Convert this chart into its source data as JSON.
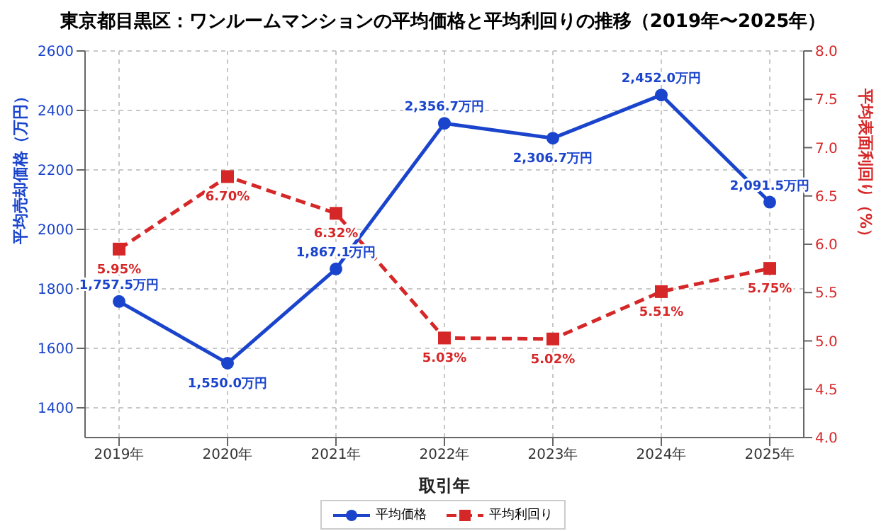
{
  "chart_data": {
    "type": "line",
    "title": "東京都目黒区：ワンルームマンションの平均価格と平均利回りの推移（2019年〜2025年）",
    "xlabel": "取引年",
    "ylabel": "平均売却価格（万円）",
    "y2label": "平均表面利回り（%）",
    "categories": [
      "2019年",
      "2020年",
      "2021年",
      "2022年",
      "2023年",
      "2024年",
      "2025年"
    ],
    "series": [
      {
        "name": "平均価格",
        "color": "#1a44cc",
        "marker": "circle",
        "line_style": "solid",
        "values": [
          1757.5,
          1550.0,
          1867.1,
          2356.7,
          2306.7,
          2452.0,
          2091.5
        ],
        "value_labels": [
          "1,757.5万円",
          "1,550.0万円",
          "1,867.1万円",
          "2,356.7万円",
          "2,306.7万円",
          "2,452.0万円",
          "2,091.5万円"
        ]
      },
      {
        "name": "平均利回り",
        "color": "#d62728",
        "axis": "y2",
        "marker": "square",
        "line_style": "dashed",
        "values": [
          5.95,
          6.7,
          6.32,
          5.03,
          5.02,
          5.51,
          5.75
        ],
        "value_labels": [
          "5.95%",
          "6.70%",
          "6.32%",
          "5.03%",
          "5.02%",
          "5.51%",
          "5.75%"
        ]
      }
    ],
    "ylim": [
      1300,
      2600
    ],
    "yticks": [
      1400,
      1600,
      1800,
      2000,
      2200,
      2400,
      2600
    ],
    "y2lim": [
      4.0,
      8.0
    ],
    "y2ticks": [
      {
        "value": 4.0,
        "label": "4.0"
      },
      {
        "value": 4.5,
        "label": "4.5"
      },
      {
        "value": 5.0,
        "label": "5.0"
      },
      {
        "value": 5.5,
        "label": "5.5"
      },
      {
        "value": 6.0,
        "label": "6.0"
      },
      {
        "value": 6.5,
        "label": "6.5"
      },
      {
        "value": 7.0,
        "label": "7.0"
      },
      {
        "value": 7.5,
        "label": "7.5"
      },
      {
        "value": 8.0,
        "label": "8.0"
      }
    ],
    "grid": true,
    "legend": "bottom"
  }
}
